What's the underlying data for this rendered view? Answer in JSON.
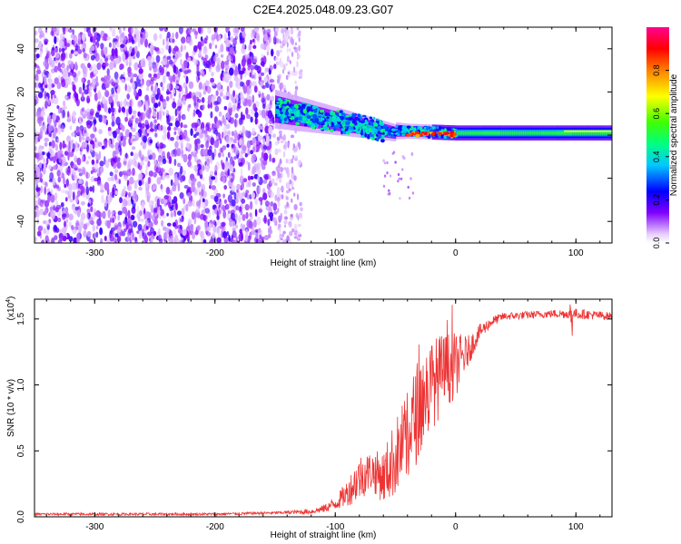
{
  "title": "C2E4.2025.048.09.23.G07",
  "chart_data": [
    {
      "type": "heatmap",
      "xlabel": "Height of straight line (km)",
      "ylabel": "Frequency (Hz)",
      "xlim": [
        -350,
        130
      ],
      "ylim": [
        -50,
        50
      ],
      "xticks": [
        -300,
        -200,
        -100,
        0,
        100
      ],
      "yticks": [
        -40,
        -20,
        0,
        20,
        40
      ],
      "grid": false,
      "colorbar": {
        "label": "Normalized spectral amplitude",
        "range": [
          0,
          1
        ],
        "ticks": [
          "0.0",
          "0.2",
          "0.4",
          "0.6",
          "0.8"
        ],
        "colors": [
          "#ffffff",
          "#8000ff",
          "#0000ff",
          "#00ffff",
          "#00ff00",
          "#ffff00",
          "#ff8000",
          "#ff0000",
          "#ff00a0"
        ]
      },
      "regions": [
        {
          "x_from": -350,
          "x_to": -150,
          "freq_from": -50,
          "freq_to": 50,
          "amplitude": 0.12,
          "pattern": "noise"
        },
        {
          "x_from": -150,
          "x_to": -130,
          "freq_from": -50,
          "freq_to": 50,
          "amplitude": 0.05,
          "pattern": "sparse"
        },
        {
          "x_from": -150,
          "x_to": 130,
          "freq_center_from": 12,
          "freq_center_to": 1,
          "amplitude_max": 0.95,
          "pattern": "signal-band"
        }
      ]
    },
    {
      "type": "line",
      "xlabel": "Height of straight line (km)",
      "ylabel": "SNR (10 * v/v)",
      "yscale_label": "(x10",
      "yscale_exp": "4",
      "xlim": [
        -350,
        130
      ],
      "ylim": [
        0,
        1.65
      ],
      "xticks": [
        -300,
        -200,
        -100,
        0,
        100
      ],
      "yticks": [
        0.0,
        0.5,
        1.0,
        1.5
      ],
      "ytick_labels": [
        "0.0",
        "0.5",
        "1.0",
        "1.5"
      ],
      "grid": false,
      "color": "#ee3333",
      "series": [
        {
          "x": [
            -350,
            -300,
            -250,
            -200,
            -150,
            -120,
            -110,
            -100,
            -90,
            -80,
            -70,
            -60,
            -50,
            -40,
            -30,
            -20,
            -10,
            0,
            10,
            20,
            30,
            40,
            60,
            80,
            100,
            130
          ],
          "y": [
            0.02,
            0.02,
            0.02,
            0.02,
            0.03,
            0.04,
            0.06,
            0.1,
            0.18,
            0.3,
            0.35,
            0.3,
            0.45,
            0.6,
            0.85,
            1.0,
            1.1,
            1.15,
            1.25,
            1.4,
            1.48,
            1.52,
            1.53,
            1.54,
            1.54,
            1.52
          ],
          "spread": [
            0.01,
            0.01,
            0.01,
            0.01,
            0.01,
            0.02,
            0.03,
            0.05,
            0.1,
            0.18,
            0.15,
            0.2,
            0.3,
            0.35,
            0.4,
            0.35,
            0.3,
            0.25,
            0.12,
            0.06,
            0.04,
            0.03,
            0.03,
            0.03,
            0.04,
            0.03
          ]
        }
      ]
    }
  ]
}
